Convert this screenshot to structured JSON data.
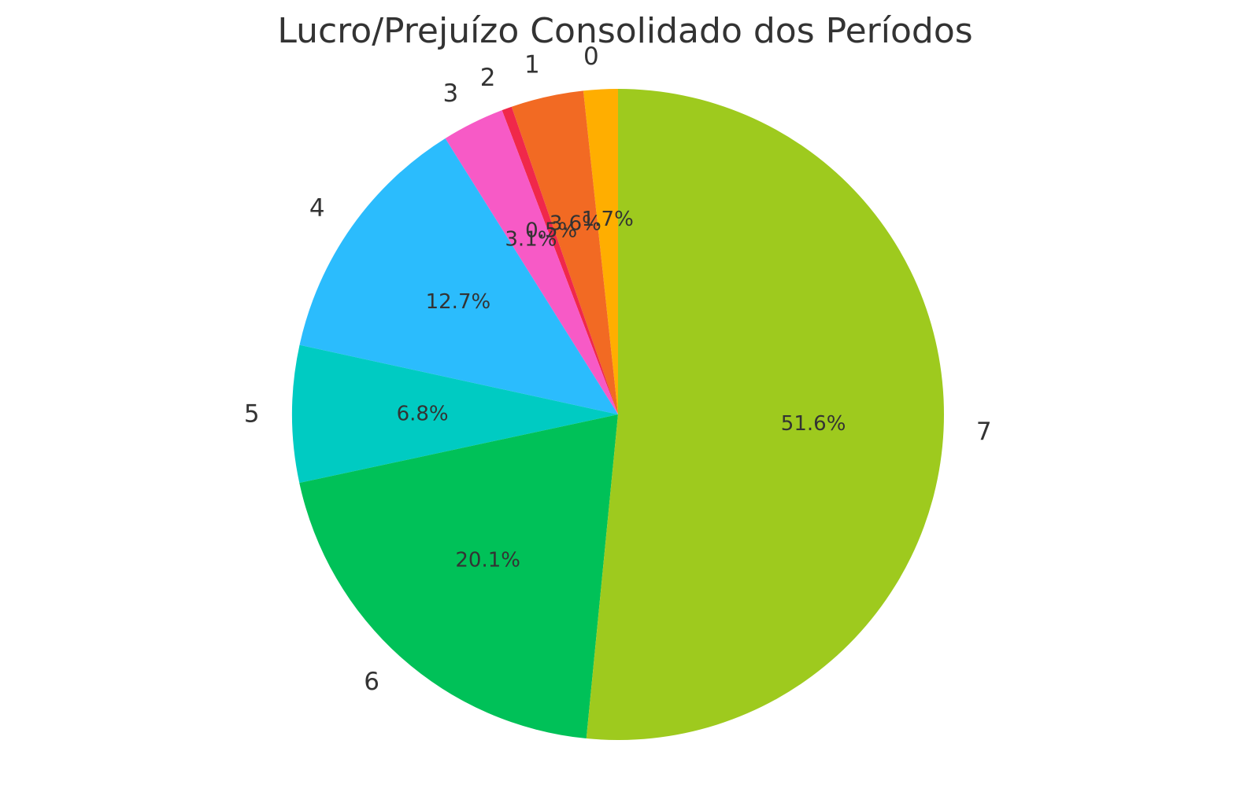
{
  "chart_data": {
    "type": "pie",
    "title": "Lucro/Prejuízo Consolidado dos Períodos",
    "start_angle": "top",
    "direction": "counter-clockwise",
    "slices": [
      {
        "label": "0",
        "value": 1.7,
        "pct_label": "1.7%",
        "color": "#FFAE00"
      },
      {
        "label": "1",
        "value": 3.6,
        "pct_label": "3.6%",
        "color": "#F26A23"
      },
      {
        "label": "2",
        "value": 0.5,
        "pct_label": "0.5%",
        "color": "#F0284A"
      },
      {
        "label": "3",
        "value": 3.1,
        "pct_label": "3.1%",
        "color": "#F75AC6"
      },
      {
        "label": "4",
        "value": 12.7,
        "pct_label": "12.7%",
        "color": "#2BBCFD"
      },
      {
        "label": "5",
        "value": 6.8,
        "pct_label": "6.8%",
        "color": "#00CBC2"
      },
      {
        "label": "6",
        "value": 20.1,
        "pct_label": "20.1%",
        "color": "#00C158"
      },
      {
        "label": "7",
        "value": 51.6,
        "pct_label": "51.6%",
        "color": "#9ECA1E"
      }
    ]
  }
}
